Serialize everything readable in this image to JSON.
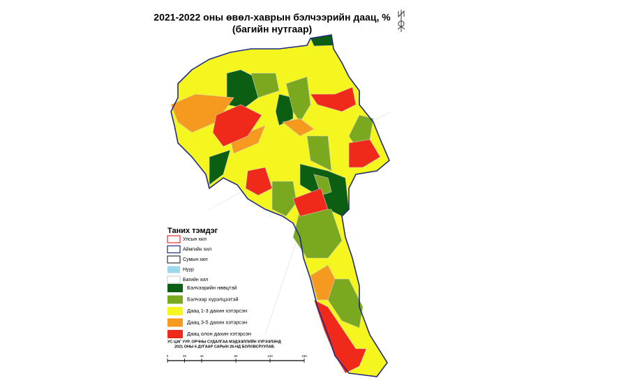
{
  "title": [
    "2021-2022 оны өвөл-хаврын бэлчээрийн даац, %",
    "(багийн нутгаар)"
  ],
  "legend": {
    "title": "Таних тэмдэг",
    "boundaries": [
      {
        "label": "Улсын хил",
        "color": "#e53030",
        "kind": "line"
      },
      {
        "label": "Аймгийн хил",
        "color": "#1f2a80",
        "kind": "line"
      },
      {
        "label": "Сумын хил",
        "color": "#333333",
        "kind": "line"
      },
      {
        "label": "Нуур",
        "color": "#9ed8ee",
        "kind": "fill"
      },
      {
        "label": "Багийн хил",
        "color": "#d0d0d0",
        "kind": "line"
      }
    ],
    "classes": [
      {
        "label": "Бэлчээрийн нөөцтэй",
        "color": "#0b5e12"
      },
      {
        "label": "Бэлчээр хүрэлцээтэй",
        "color": "#7aa81e"
      },
      {
        "label": "Даац 1-3 дахин хэтэрсэн",
        "color": "#f5f520"
      },
      {
        "label": "Даац 3-5 дахин хэтэрсэн",
        "color": "#f59a1e"
      },
      {
        "label": "Даац олон дахин хэтэрсэн",
        "color": "#f02a1a"
      }
    ]
  },
  "note": [
    "УС ЦАГ УУР, ОРЧНЫ СУДАЛГАА МЭДЭЭЛЛИЙН ХҮРЭЭЛЭНД",
    "2021 ОНЫ 6 ДУГААР САРЫН 26-НД БОЛОВСРУУЛАВ."
  ],
  "scale": {
    "ticks": [
      0,
      20,
      40,
      80,
      120,
      160
    ]
  }
}
